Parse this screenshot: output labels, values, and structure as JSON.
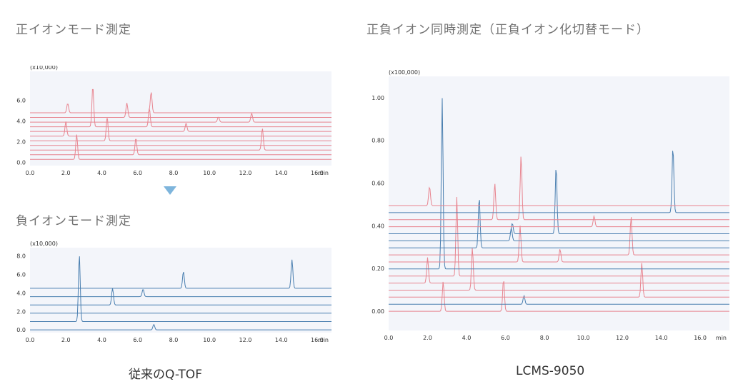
{
  "headings": {
    "left_top": "正イオンモード測定",
    "left_bottom": "負イオンモード測定",
    "right": "正負イオン同時測定（正負イオン化切替モード）"
  },
  "captions": {
    "left": "従来のQ-TOF",
    "right": "LCMS-9050"
  },
  "colors": {
    "positive": "#e8848f",
    "negative": "#4a7fb0",
    "plot_bg": "#f3f5fa",
    "axis": "#333333"
  },
  "chart_data": [
    {
      "type": "line",
      "id": "pos",
      "ylabel": "(x10,000)",
      "x_unit": "min",
      "xlim": [
        0,
        16.8
      ],
      "ylim": [
        -0.3,
        8.8
      ],
      "xticks": [
        "0.0",
        "2.0",
        "4.0",
        "6.0",
        "8.0",
        "10.0",
        "12.0",
        "14.0",
        "16.0"
      ],
      "yticks": [
        "0.0",
        "2.0",
        "4.0",
        "6.0"
      ],
      "series": [
        {
          "color": "positive",
          "baseline": 0.3,
          "peaks": [
            [
              2.6,
              2.4
            ]
          ]
        },
        {
          "color": "positive",
          "baseline": 0.75,
          "peaks": [
            [
              5.9,
              1.6
            ]
          ]
        },
        {
          "color": "positive",
          "baseline": 1.2,
          "peaks": [
            [
              12.95,
              2.1
            ]
          ]
        },
        {
          "color": "positive",
          "baseline": 1.65,
          "peaks": []
        },
        {
          "color": "positive",
          "baseline": 2.1,
          "peaks": [
            [
              4.3,
              2.3
            ]
          ]
        },
        {
          "color": "positive",
          "baseline": 2.55,
          "peaks": [
            [
              2.0,
              1.4
            ]
          ]
        },
        {
          "color": "positive",
          "baseline": 3.0,
          "peaks": [
            [
              8.7,
              0.8
            ]
          ]
        },
        {
          "color": "positive",
          "baseline": 3.45,
          "peaks": [
            [
              3.5,
              3.9
            ],
            [
              6.65,
              1.8
            ]
          ]
        },
        {
          "color": "positive",
          "baseline": 3.9,
          "peaks": [
            [
              10.5,
              0.5
            ],
            [
              12.35,
              0.85
            ]
          ]
        },
        {
          "color": "positive",
          "baseline": 4.35,
          "peaks": [
            [
              5.4,
              1.4
            ]
          ]
        },
        {
          "color": "positive",
          "baseline": 4.8,
          "peaks": [
            [
              2.1,
              0.9
            ],
            [
              6.75,
              2.0
            ]
          ]
        }
      ]
    },
    {
      "type": "line",
      "id": "neg",
      "ylabel": "(x10,000)",
      "x_unit": "min",
      "xlim": [
        0,
        16.8
      ],
      "ylim": [
        -0.3,
        8.9
      ],
      "xticks": [
        "0.0",
        "2.0",
        "4.0",
        "6.0",
        "8.0",
        "10.0",
        "12.0",
        "14.0",
        "16.0"
      ],
      "yticks": [
        "0.0",
        "2.0",
        "4.0",
        "6.0",
        "8.0"
      ],
      "series": [
        {
          "color": "negative",
          "baseline": 0.0,
          "peaks": [
            [
              6.9,
              0.6
            ]
          ]
        },
        {
          "color": "negative",
          "baseline": 0.9,
          "peaks": [
            [
              2.75,
              7.2
            ]
          ]
        },
        {
          "color": "negative",
          "baseline": 1.8,
          "peaks": []
        },
        {
          "color": "negative",
          "baseline": 2.7,
          "peaks": [
            [
              4.6,
              1.8
            ]
          ]
        },
        {
          "color": "negative",
          "baseline": 3.6,
          "peaks": [
            [
              6.3,
              0.8
            ]
          ]
        },
        {
          "color": "negative",
          "baseline": 4.5,
          "peaks": [
            [
              8.55,
              1.8
            ],
            [
              14.6,
              3.1
            ]
          ]
        }
      ]
    },
    {
      "type": "line",
      "id": "mix",
      "ylabel": "(x100,000)",
      "x_unit": "min",
      "xlim": [
        0,
        17.5
      ],
      "ylim": [
        -0.09,
        1.1
      ],
      "xticks": [
        "0.0",
        "2.0",
        "4.0",
        "6.0",
        "8.0",
        "10.0",
        "12.0",
        "14.0",
        "16.0"
      ],
      "yticks": [
        "0.00",
        "0.20",
        "0.40",
        "0.60",
        "0.80",
        "1.00"
      ],
      "series": [
        {
          "color": "positive",
          "baseline": 0.0,
          "peaks": [
            [
              2.8,
              0.14
            ],
            [
              5.9,
              0.15
            ]
          ]
        },
        {
          "color": "negative",
          "baseline": 0.033,
          "peaks": [
            [
              6.95,
              0.04
            ]
          ]
        },
        {
          "color": "positive",
          "baseline": 0.066,
          "peaks": [
            [
              13.0,
              0.16
            ]
          ]
        },
        {
          "color": "positive",
          "baseline": 0.099,
          "peaks": [
            [
              4.3,
              0.2
            ]
          ]
        },
        {
          "color": "positive",
          "baseline": 0.132,
          "peaks": [
            [
              2.0,
              0.12
            ]
          ]
        },
        {
          "color": "positive",
          "baseline": 0.165,
          "peaks": [
            [
              3.5,
              0.37
            ]
          ]
        },
        {
          "color": "negative",
          "baseline": 0.198,
          "peaks": [
            [
              2.75,
              0.8
            ]
          ]
        },
        {
          "color": "positive",
          "baseline": 0.231,
          "peaks": [
            [
              6.75,
              0.17
            ],
            [
              8.8,
              0.06
            ]
          ]
        },
        {
          "color": "positive",
          "baseline": 0.264,
          "peaks": [
            [
              12.45,
              0.18
            ]
          ]
        },
        {
          "color": "negative",
          "baseline": 0.297,
          "peaks": [
            [
              4.65,
              0.24
            ]
          ]
        },
        {
          "color": "negative",
          "baseline": 0.33,
          "peaks": [
            [
              6.3,
              0.06
            ]
          ]
        },
        {
          "color": "negative",
          "baseline": 0.363,
          "peaks": [
            [
              6.35,
              0.05
            ],
            [
              8.6,
              0.32
            ]
          ]
        },
        {
          "color": "positive",
          "baseline": 0.396,
          "peaks": [
            [
              10.55,
              0.05
            ]
          ]
        },
        {
          "color": "positive",
          "baseline": 0.429,
          "peaks": [
            [
              5.45,
              0.17
            ],
            [
              6.8,
              0.3
            ]
          ]
        },
        {
          "color": "negative",
          "baseline": 0.462,
          "peaks": [
            [
              14.6,
              0.31
            ]
          ]
        },
        {
          "color": "positive",
          "baseline": 0.495,
          "peaks": [
            [
              2.1,
              0.09
            ]
          ]
        }
      ]
    }
  ]
}
